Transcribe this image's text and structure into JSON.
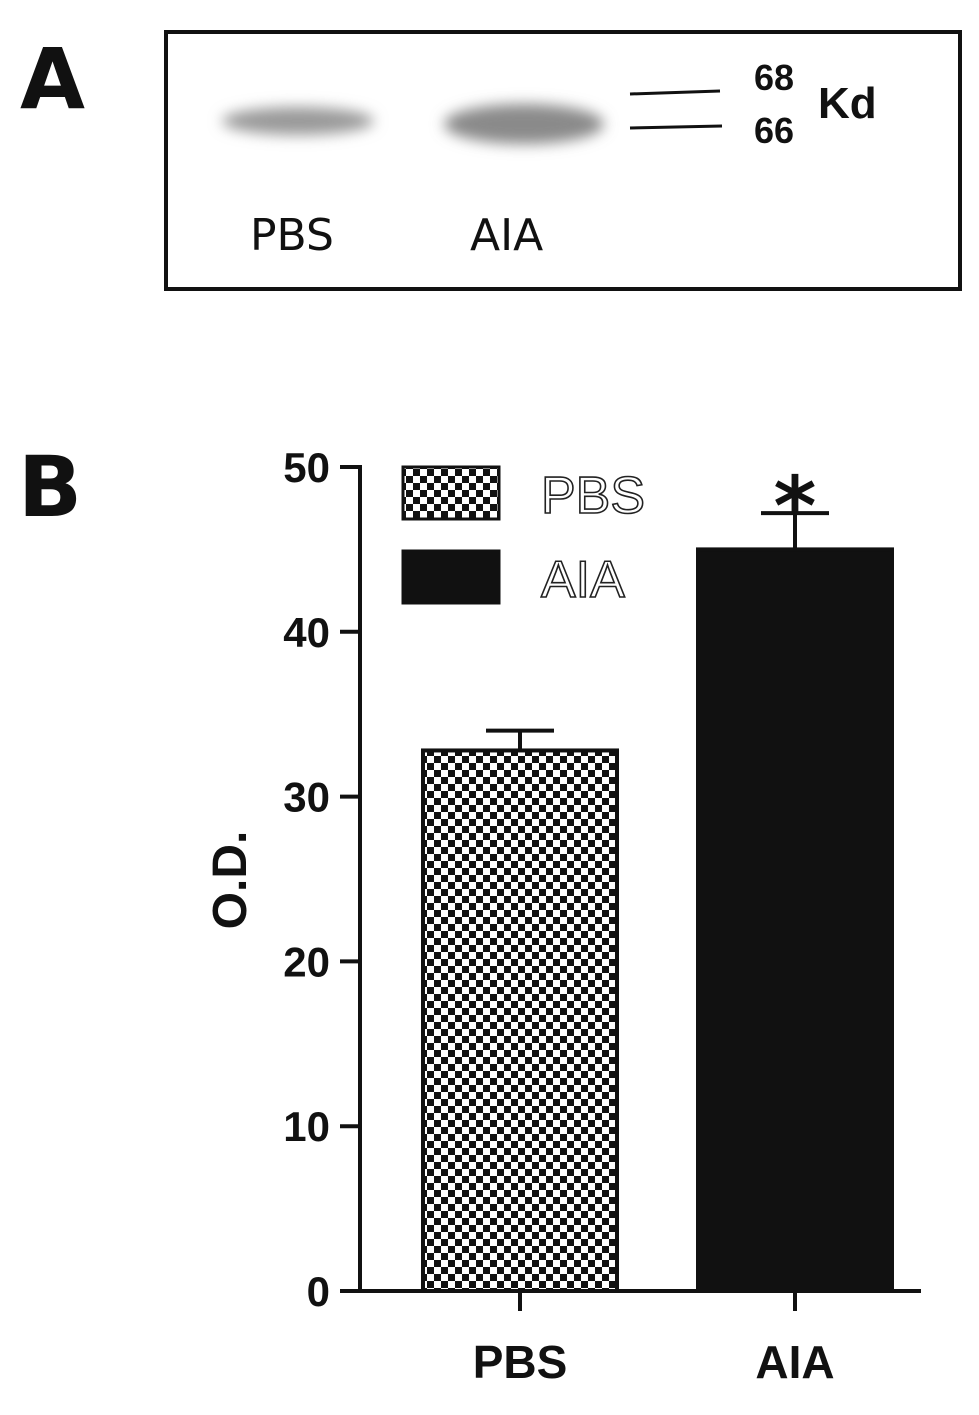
{
  "panel_a": {
    "letter": "A",
    "lanes": [
      "PBS",
      "AIA"
    ],
    "markers": [
      "68",
      "66"
    ],
    "marker_unit": "Kd"
  },
  "panel_b": {
    "letter": "B"
  },
  "chart_data": {
    "type": "bar",
    "categories": [
      "PBS",
      "AIA"
    ],
    "values": [
      32.8,
      45.0
    ],
    "error": [
      1.2,
      2.2
    ],
    "fills": [
      "checkerboard",
      "solid"
    ],
    "colors": [
      "#111111",
      "#111111"
    ],
    "xlabel": "",
    "ylabel": "O.D.",
    "ylim": [
      0,
      50
    ],
    "yticks": [
      "0",
      "10",
      "20",
      "30",
      "40",
      "50"
    ],
    "legend": {
      "placement": "top-left",
      "entries": [
        "PBS",
        "AIA"
      ]
    },
    "annotations": [
      {
        "category": "AIA",
        "text": "*"
      }
    ],
    "grid": false
  }
}
